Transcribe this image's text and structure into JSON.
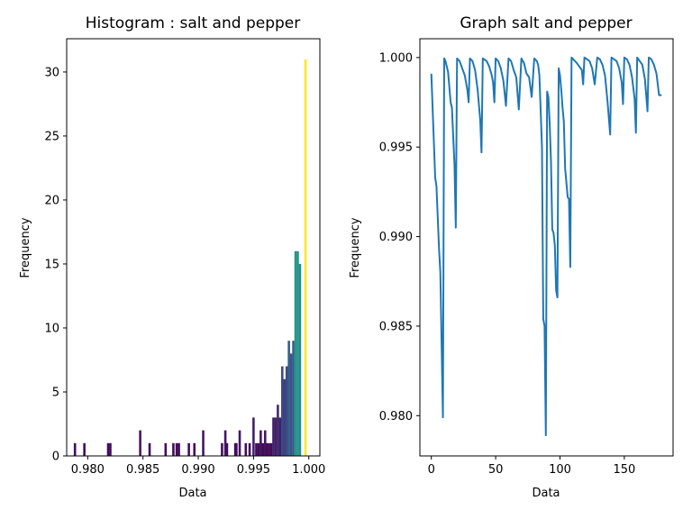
{
  "chart_data": [
    {
      "type": "bar",
      "title": "Histogram : salt and pepper",
      "xlabel": "Data",
      "ylabel": "Frequency",
      "xlim": [
        0.9781,
        1.001
      ],
      "ylim": [
        0,
        32.6
      ],
      "xticks": [
        0.98,
        0.985,
        0.99,
        0.995,
        1.0
      ],
      "xtick_labels": [
        "0.980",
        "0.985",
        "0.990",
        "0.995",
        "1.000"
      ],
      "yticks": [
        0,
        5,
        10,
        15,
        20,
        25,
        30
      ],
      "ytick_labels": [
        "0",
        "5",
        "10",
        "15",
        "20",
        "25",
        "30"
      ],
      "bin_width": 0.000211,
      "colormap": "viridis",
      "bins": [
        {
          "x": 0.97885,
          "count": 1
        },
        {
          "x": 0.9797,
          "count": 1
        },
        {
          "x": 0.98185,
          "count": 1
        },
        {
          "x": 0.98205,
          "count": 1
        },
        {
          "x": 0.98475,
          "count": 2
        },
        {
          "x": 0.9856,
          "count": 1
        },
        {
          "x": 0.98705,
          "count": 1
        },
        {
          "x": 0.98775,
          "count": 1
        },
        {
          "x": 0.98805,
          "count": 1
        },
        {
          "x": 0.98825,
          "count": 1
        },
        {
          "x": 0.98915,
          "count": 1
        },
        {
          "x": 0.98965,
          "count": 1
        },
        {
          "x": 0.99045,
          "count": 2
        },
        {
          "x": 0.99215,
          "count": 1
        },
        {
          "x": 0.99245,
          "count": 2
        },
        {
          "x": 0.9926,
          "count": 1
        },
        {
          "x": 0.99335,
          "count": 1
        },
        {
          "x": 0.99345,
          "count": 1
        },
        {
          "x": 0.99375,
          "count": 2
        },
        {
          "x": 0.9943,
          "count": 1
        },
        {
          "x": 0.99465,
          "count": 1
        },
        {
          "x": 0.995,
          "count": 3
        },
        {
          "x": 0.99525,
          "count": 1
        },
        {
          "x": 0.99545,
          "count": 1
        },
        {
          "x": 0.99565,
          "count": 2
        },
        {
          "x": 0.99585,
          "count": 1
        },
        {
          "x": 0.99605,
          "count": 2
        },
        {
          "x": 0.9962,
          "count": 1
        },
        {
          "x": 0.9964,
          "count": 1
        },
        {
          "x": 0.9966,
          "count": 1
        },
        {
          "x": 0.9968,
          "count": 3
        },
        {
          "x": 0.997,
          "count": 3
        },
        {
          "x": 0.9972,
          "count": 4
        },
        {
          "x": 0.9974,
          "count": 3
        },
        {
          "x": 0.9976,
          "count": 7
        },
        {
          "x": 0.9978,
          "count": 6
        },
        {
          "x": 0.998,
          "count": 7
        },
        {
          "x": 0.9982,
          "count": 9
        },
        {
          "x": 0.9984,
          "count": 8
        },
        {
          "x": 0.9986,
          "count": 9
        },
        {
          "x": 0.9988,
          "count": 16
        },
        {
          "x": 0.999,
          "count": 16
        },
        {
          "x": 0.9992,
          "count": 15
        },
        {
          "x": 0.9997,
          "count": 31
        }
      ]
    },
    {
      "type": "line",
      "title": "Graph salt and pepper",
      "xlabel": "Data",
      "ylabel": "Frequency",
      "xlim": [
        -8.9,
        187.9
      ],
      "ylim": [
        0.97775,
        1.00105
      ],
      "xticks": [
        0,
        50,
        100,
        150
      ],
      "xtick_labels": [
        "0",
        "50",
        "100",
        "150"
      ],
      "yticks": [
        0.98,
        0.985,
        0.99,
        0.995,
        1.0
      ],
      "ytick_labels": [
        "0.980",
        "0.985",
        "0.990",
        "0.995",
        "1.000"
      ],
      "line_color": "#1f77b4",
      "points": [
        [
          0,
          0.9991
        ],
        [
          3,
          0.9933
        ],
        [
          4,
          0.9928
        ],
        [
          6,
          0.9893
        ],
        [
          7,
          0.988
        ],
        [
          9,
          0.9799
        ],
        [
          10,
          0.99995
        ],
        [
          11,
          0.9998
        ],
        [
          13,
          0.9992
        ],
        [
          15,
          0.9975
        ],
        [
          16,
          0.9972
        ],
        [
          18,
          0.994
        ],
        [
          19,
          0.9905
        ],
        [
          20,
          0.99995
        ],
        [
          22,
          0.9998
        ],
        [
          24,
          0.9994
        ],
        [
          26,
          0.999
        ],
        [
          28,
          0.9982
        ],
        [
          29,
          0.9975
        ],
        [
          30,
          0.99995
        ],
        [
          32,
          0.9998
        ],
        [
          34,
          0.9993
        ],
        [
          36,
          0.9982
        ],
        [
          38,
          0.9965
        ],
        [
          39,
          0.9947
        ],
        [
          40,
          0.99995
        ],
        [
          43,
          0.9998
        ],
        [
          45,
          0.9995
        ],
        [
          47,
          0.999
        ],
        [
          48,
          0.9986
        ],
        [
          49,
          0.9975
        ],
        [
          50,
          0.99995
        ],
        [
          52,
          0.9998
        ],
        [
          54,
          0.9994
        ],
        [
          56,
          0.9987
        ],
        [
          58,
          0.9973
        ],
        [
          60,
          0.99995
        ],
        [
          62,
          0.9998
        ],
        [
          64,
          0.9993
        ],
        [
          66,
          0.9989
        ],
        [
          68,
          0.9971
        ],
        [
          70,
          0.99995
        ],
        [
          72,
          0.9997
        ],
        [
          74,
          0.9991
        ],
        [
          76,
          0.9989
        ],
        [
          78,
          0.9978
        ],
        [
          80,
          0.99995
        ],
        [
          82,
          0.9998
        ],
        [
          83,
          0.9996
        ],
        [
          84,
          0.999
        ],
        [
          86,
          0.995
        ],
        [
          87,
          0.9854
        ],
        [
          88,
          0.985
        ],
        [
          89,
          0.9789
        ],
        [
          90,
          0.9981
        ],
        [
          91,
          0.9978
        ],
        [
          92,
          0.9963
        ],
        [
          93,
          0.9942
        ],
        [
          94,
          0.9904
        ],
        [
          95,
          0.9902
        ],
        [
          96,
          0.9895
        ],
        [
          97,
          0.987
        ],
        [
          98,
          0.9866
        ],
        [
          99,
          0.9994
        ],
        [
          100,
          0.999
        ],
        [
          101,
          0.9982
        ],
        [
          102,
          0.9972
        ],
        [
          103,
          0.9964
        ],
        [
          104,
          0.9938
        ],
        [
          106,
          0.9922
        ],
        [
          107,
          0.9921
        ],
        [
          108,
          0.9883
        ],
        [
          109,
          1.0
        ],
        [
          111,
          0.99985
        ],
        [
          113,
          0.9997
        ],
        [
          115,
          0.9995
        ],
        [
          117,
          0.9993
        ],
        [
          118,
          0.9985
        ],
        [
          119,
          1.0
        ],
        [
          121,
          0.9999
        ],
        [
          123,
          0.9998
        ],
        [
          125,
          0.9994
        ],
        [
          127,
          0.9985
        ],
        [
          129,
          1.0
        ],
        [
          131,
          0.9999
        ],
        [
          133,
          0.9996
        ],
        [
          135,
          0.999
        ],
        [
          137,
          0.9975
        ],
        [
          139,
          0.9957
        ],
        [
          140,
          1.0
        ],
        [
          142,
          0.9999
        ],
        [
          144,
          0.9998
        ],
        [
          146,
          0.9994
        ],
        [
          148,
          0.9986
        ],
        [
          149,
          0.9974
        ],
        [
          150,
          1.0
        ],
        [
          152,
          0.9999
        ],
        [
          154,
          0.9996
        ],
        [
          156,
          0.9989
        ],
        [
          158,
          0.9977
        ],
        [
          159,
          0.9958
        ],
        [
          160,
          1.0
        ],
        [
          162,
          0.9998
        ],
        [
          164,
          0.9996
        ],
        [
          166,
          0.9988
        ],
        [
          168,
          0.997
        ],
        [
          169,
          1.0
        ],
        [
          171,
          0.9999
        ],
        [
          173,
          0.9996
        ],
        [
          175,
          0.9991
        ],
        [
          177,
          0.9979
        ],
        [
          179,
          0.9979
        ]
      ]
    }
  ]
}
